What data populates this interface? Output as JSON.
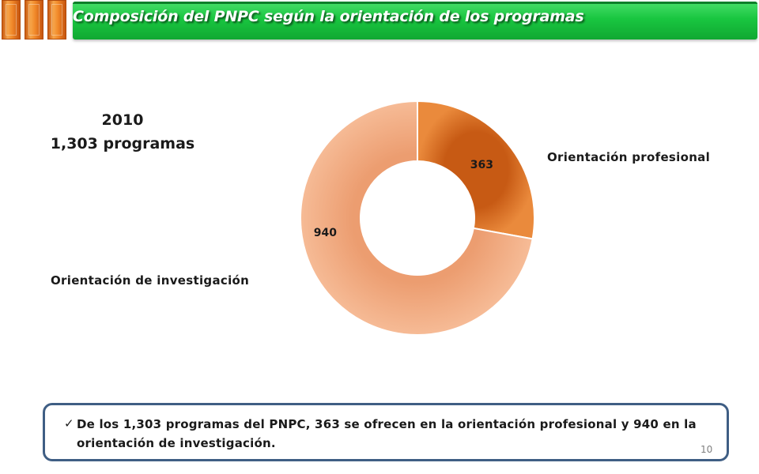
{
  "header": {
    "title": "Composición del PNPC según la orientación de los programas",
    "accent_color": "#19c640",
    "decor_color": "#f28a2a"
  },
  "chart_data": {
    "type": "pie",
    "variant": "doughnut",
    "title": "2010",
    "subtitle": "1,303 programas",
    "series": [
      {
        "name": "Orientación profesional",
        "value": 363,
        "label": "363",
        "color": "#e07b2a"
      },
      {
        "name": "Orientación de investigación",
        "value": 940,
        "label": "940",
        "color": "#f0a87c"
      }
    ],
    "total": 1303,
    "legend": "labels beside slices"
  },
  "note": {
    "check_icon": "checkmark-icon",
    "text": "De los 1,303 programas del PNPC, 363 se ofrecen en la orientación profesional y 940 en la orientación de investigación."
  },
  "footer": {
    "page_number": "10"
  }
}
